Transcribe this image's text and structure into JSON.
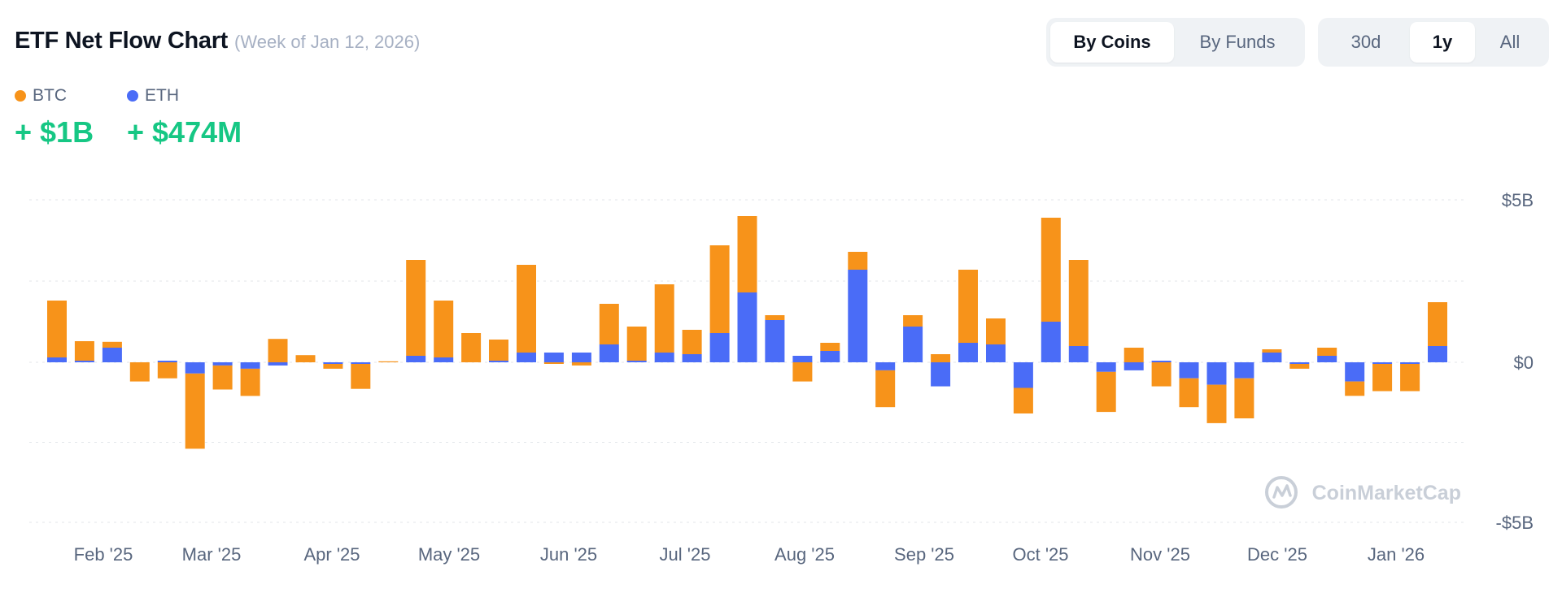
{
  "header": {
    "title": "ETF Net Flow Chart",
    "subtitle": "(Week of Jan 12, 2026)"
  },
  "toggles": {
    "view": [
      {
        "label": "By Coins",
        "active": true
      },
      {
        "label": "By Funds",
        "active": false
      }
    ],
    "range": [
      {
        "label": "30d",
        "active": false
      },
      {
        "label": "1y",
        "active": true
      },
      {
        "label": "All",
        "active": false
      }
    ]
  },
  "legend": [
    {
      "name": "BTC",
      "color": "#f7931a",
      "value": "+ $1B"
    },
    {
      "name": "ETH",
      "color": "#4a6cf7",
      "value": "+ $474M"
    }
  ],
  "watermark": "CoinMarketCap",
  "chart_data": {
    "type": "bar",
    "stacked": true,
    "series": [
      {
        "name": "BTC",
        "color": "#f7931a",
        "values": [
          1.75,
          0.6,
          0.18,
          -0.6,
          -0.5,
          -2.35,
          -0.75,
          -0.85,
          0.72,
          0.22,
          -0.15,
          -0.78,
          0.03,
          2.95,
          1.75,
          0.9,
          0.65,
          2.7,
          -0.05,
          -0.1,
          1.25,
          1.05,
          2.1,
          0.75,
          2.7,
          2.35,
          0.15,
          -0.6,
          0.25,
          0.55,
          -1.15,
          0.35,
          0.25,
          2.25,
          0.8,
          -0.8,
          3.2,
          2.65,
          -1.25,
          0.45,
          -0.75,
          -0.9,
          -1.2,
          -1.25,
          0.1,
          -0.15,
          0.25,
          -0.45,
          -0.85,
          -0.85,
          1.35
        ]
      },
      {
        "name": "ETH",
        "color": "#4a6cf7",
        "values": [
          0.15,
          0.05,
          0.45,
          0.0,
          0.05,
          -0.35,
          -0.1,
          -0.2,
          -0.1,
          0.0,
          -0.05,
          -0.05,
          0.0,
          0.2,
          0.15,
          0.0,
          0.05,
          0.3,
          0.3,
          0.3,
          0.55,
          0.05,
          0.3,
          0.25,
          0.9,
          2.15,
          1.3,
          0.2,
          0.35,
          2.85,
          -0.25,
          1.1,
          -0.75,
          0.6,
          0.55,
          -0.8,
          1.25,
          0.5,
          -0.3,
          -0.25,
          0.05,
          -0.5,
          -0.7,
          -0.5,
          0.3,
          -0.05,
          0.2,
          -0.6,
          -0.05,
          -0.05,
          0.5
        ]
      }
    ],
    "x_ticks": [
      "Feb '25",
      "Mar '25",
      "Apr '25",
      "May '25",
      "Jun '25",
      "Jul '25",
      "Aug '25",
      "Sep '25",
      "Oct '25",
      "Nov '25",
      "Dec '25",
      "Jan '26"
    ],
    "y_ticks": [
      {
        "value": 5,
        "label": "$5B"
      },
      {
        "value": 0,
        "label": "$0"
      },
      {
        "value": -5,
        "label": "-$5B"
      }
    ],
    "ylim": [
      -5,
      5
    ],
    "y_unit": "B USD",
    "grid": true,
    "legend_position": "top-left"
  }
}
